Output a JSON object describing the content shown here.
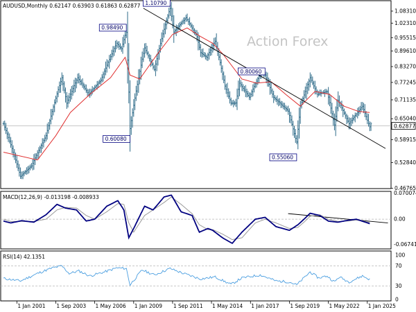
{
  "colors": {
    "price_bars": "#2e6b89",
    "moving_average": "#e03030",
    "trendline": "#000000",
    "macd_line": "#000080",
    "macd_signal": "#9a9a9a",
    "rsi_line": "#4a9ee0",
    "callout_border": "#000080",
    "reference_line": "#b5b5b5"
  },
  "watermark": "Action Forex",
  "chart_data": [
    {
      "type": "ohlc",
      "header": "AUDUSD,Monthly  0.62147 0.63903 0.61863 0.62877",
      "symbol": "AUDUSD",
      "timeframe": "Monthly",
      "last_bar": {
        "open": 0.62147,
        "high": 0.63903,
        "low": 0.61863,
        "close": 0.62877
      },
      "current_price_label": "0.62877",
      "y_scale": "log",
      "ylim": [
        0.4671,
        1.1378
      ],
      "y_ticks": [
        0.46765,
        0.5284,
        0.58915,
        0.6287,
        0.6504,
        0.71135,
        0.77245,
        0.8327,
        0.8961,
        0.95515,
        1.0231,
        1.0831
      ],
      "y_tick_labels": [
        "0.46765",
        "0.52840",
        "0.58915",
        "",
        "0.65040",
        "0.71135",
        "0.77245",
        "0.83270",
        "0.89610",
        "0.95515",
        "1.02310",
        "1.08310"
      ],
      "x_range": [
        "2000-02-01",
        "2026-04-01"
      ],
      "x_tick_dates": [
        "2001-01-01",
        "2003-09-01",
        "2006-05-01",
        "2009-01-01",
        "2011-09-01",
        "2014-05-01",
        "2017-01-01",
        "2019-09-01",
        "2022-05-01",
        "2025-01-01"
      ],
      "x_tick_labels": [
        "1 Jan 2001",
        "1 Sep 2003",
        "1 May 2006",
        "1 Jan 2009",
        "1 Sep 2011",
        "1 May 2014",
        "1 Jan 2017",
        "1 Sep 2019",
        "1 May 2022",
        "1 Jan 2025"
      ],
      "price_path": [
        [
          "2000-02-01",
          0.635
        ],
        [
          "2001-04-01",
          0.495
        ],
        [
          "2002-01-01",
          0.52
        ],
        [
          "2003-01-01",
          0.6
        ],
        [
          "2004-02-01",
          0.79
        ],
        [
          "2004-06-01",
          0.7
        ],
        [
          "2005-03-01",
          0.79
        ],
        [
          "2005-12-01",
          0.73
        ],
        [
          "2006-10-01",
          0.78
        ],
        [
          "2007-11-01",
          0.93
        ],
        [
          "2008-03-01",
          0.905
        ],
        [
          "2008-07-01",
          0.985
        ],
        [
          "2008-10-01",
          0.62
        ],
        [
          "2009-10-01",
          0.91
        ],
        [
          "2010-06-01",
          0.82
        ],
        [
          "2011-07-01",
          1.1
        ],
        [
          "2011-10-01",
          0.98
        ],
        [
          "2012-08-01",
          1.05
        ],
        [
          "2013-05-01",
          0.96
        ],
        [
          "2013-08-01",
          0.89
        ],
        [
          "2014-01-01",
          0.87
        ],
        [
          "2014-08-01",
          0.94
        ],
        [
          "2015-04-01",
          0.76
        ],
        [
          "2015-09-01",
          0.7
        ],
        [
          "2016-01-01",
          0.7
        ],
        [
          "2016-04-01",
          0.77
        ],
        [
          "2016-12-01",
          0.72
        ],
        [
          "2017-09-01",
          0.805
        ],
        [
          "2018-01-01",
          0.8
        ],
        [
          "2018-08-01",
          0.72
        ],
        [
          "2019-08-01",
          0.675
        ],
        [
          "2020-03-01",
          0.58
        ],
        [
          "2020-06-01",
          0.69
        ],
        [
          "2021-02-01",
          0.79
        ],
        [
          "2021-08-01",
          0.73
        ],
        [
          "2022-04-01",
          0.74
        ],
        [
          "2022-10-01",
          0.63
        ],
        [
          "2023-01-01",
          0.71
        ],
        [
          "2023-10-01",
          0.635
        ],
        [
          "2024-09-01",
          0.69
        ],
        [
          "2025-03-01",
          0.625
        ],
        [
          "2025-05-01",
          0.643
        ]
      ],
      "moving_average_path": [
        [
          "2000-02-01",
          0.555
        ],
        [
          "2002-06-01",
          0.535
        ],
        [
          "2003-09-01",
          0.6
        ],
        [
          "2004-09-01",
          0.67
        ],
        [
          "2006-01-01",
          0.73
        ],
        [
          "2007-06-01",
          0.79
        ],
        [
          "2008-06-01",
          0.87
        ],
        [
          "2008-10-01",
          0.8
        ],
        [
          "2009-06-01",
          0.785
        ],
        [
          "2010-08-01",
          0.88
        ],
        [
          "2011-09-01",
          0.97
        ],
        [
          "2012-09-01",
          1.0
        ],
        [
          "2013-08-01",
          0.96
        ],
        [
          "2014-06-01",
          0.93
        ],
        [
          "2015-03-01",
          0.88
        ],
        [
          "2016-06-01",
          0.785
        ],
        [
          "2017-06-01",
          0.77
        ],
        [
          "2018-06-01",
          0.775
        ],
        [
          "2019-06-01",
          0.73
        ],
        [
          "2020-06-01",
          0.69
        ],
        [
          "2021-06-01",
          0.74
        ],
        [
          "2022-06-01",
          0.73
        ],
        [
          "2023-06-01",
          0.69
        ],
        [
          "2024-06-01",
          0.673
        ],
        [
          "2025-03-01",
          0.67
        ]
      ],
      "trendline": {
        "from": [
          "2009-09-01",
          1.0979
        ],
        "to": [
          "2026-04-01",
          0.565
        ]
      },
      "callouts": [
        {
          "label": "1.10790",
          "value": 1.1079,
          "date": "2011-07-01"
        },
        {
          "label": "0.98490",
          "value": 0.9849,
          "date": "2008-07-01"
        },
        {
          "label": "0.60080",
          "value": 0.6008,
          "date": "2008-10-01"
        },
        {
          "label": "0.80060",
          "value": 0.8006,
          "date": "2018-01-01"
        },
        {
          "label": "0.55060",
          "value": 0.5506,
          "date": "2020-03-01"
        }
      ]
    },
    {
      "type": "line",
      "header": "MACD(12,26,9) -0.013198 -0.008933",
      "macd": -0.013198,
      "signal": -0.008933,
      "ylim": [
        -0.08,
        0.075
      ],
      "y_ticks": [
        0.070074,
        0.0,
        -0.067419
      ],
      "y_tick_labels": [
        "0.070074",
        "0.00",
        "-0.067419"
      ],
      "series": [
        {
          "values": [
            [
              "2000-02-01",
              -0.005
            ],
            [
              "2000-08-01",
              -0.01
            ],
            [
              "2001-05-01",
              -0.004
            ],
            [
              "2002-03-01",
              -0.008
            ],
            [
              "2003-01-01",
              0.012
            ],
            [
              "2003-10-01",
              0.04
            ],
            [
              "2004-05-01",
              0.03
            ],
            [
              "2005-02-01",
              0.025
            ],
            [
              "2005-10-01",
              -0.005
            ],
            [
              "2006-05-01",
              0.0
            ],
            [
              "2007-03-01",
              0.035
            ],
            [
              "2007-12-01",
              0.05
            ],
            [
              "2008-05-01",
              0.025
            ],
            [
              "2008-09-01",
              -0.05
            ],
            [
              "2009-01-01",
              -0.025
            ],
            [
              "2009-10-01",
              0.035
            ],
            [
              "2010-05-01",
              0.025
            ],
            [
              "2011-02-01",
              0.06
            ],
            [
              "2011-08-01",
              0.065
            ],
            [
              "2012-04-01",
              0.02
            ],
            [
              "2013-01-01",
              0.01
            ],
            [
              "2013-07-01",
              -0.035
            ],
            [
              "2014-02-01",
              -0.025
            ],
            [
              "2014-06-01",
              -0.03
            ],
            [
              "2015-02-01",
              -0.05
            ],
            [
              "2015-10-01",
              -0.065
            ],
            [
              "2016-06-01",
              -0.035
            ],
            [
              "2017-05-01",
              0.0
            ],
            [
              "2018-01-01",
              0.005
            ],
            [
              "2018-10-01",
              -0.02
            ],
            [
              "2019-09-01",
              -0.03
            ],
            [
              "2020-04-01",
              -0.015
            ],
            [
              "2020-09-01",
              0.0
            ],
            [
              "2021-02-01",
              0.016
            ],
            [
              "2021-10-01",
              0.01
            ],
            [
              "2022-05-01",
              -0.005
            ],
            [
              "2023-01-01",
              -0.008
            ],
            [
              "2023-09-01",
              -0.003
            ],
            [
              "2024-04-01",
              0.0
            ],
            [
              "2025-04-01",
              -0.013
            ]
          ]
        },
        {
          "values": [
            [
              "2000-02-01",
              0.0
            ],
            [
              "2000-08-01",
              -0.006
            ],
            [
              "2001-05-01",
              -0.006
            ],
            [
              "2002-03-01",
              -0.006
            ],
            [
              "2003-01-01",
              0.0
            ],
            [
              "2003-10-01",
              0.025
            ],
            [
              "2004-05-01",
              0.032
            ],
            [
              "2005-02-01",
              0.03
            ],
            [
              "2005-10-01",
              0.01
            ],
            [
              "2006-05-01",
              0.0
            ],
            [
              "2007-03-01",
              0.02
            ],
            [
              "2007-12-01",
              0.042
            ],
            [
              "2008-05-01",
              0.04
            ],
            [
              "2008-09-01",
              -0.01
            ],
            [
              "2009-01-01",
              -0.035
            ],
            [
              "2009-10-01",
              0.01
            ],
            [
              "2010-05-01",
              0.025
            ],
            [
              "2011-02-01",
              0.045
            ],
            [
              "2011-08-01",
              0.06
            ],
            [
              "2012-04-01",
              0.04
            ],
            [
              "2013-01-01",
              0.015
            ],
            [
              "2013-07-01",
              -0.015
            ],
            [
              "2014-02-01",
              -0.028
            ],
            [
              "2014-06-01",
              -0.028
            ],
            [
              "2015-02-01",
              -0.04
            ],
            [
              "2015-10-01",
              -0.055
            ],
            [
              "2016-06-01",
              -0.05
            ],
            [
              "2017-05-01",
              -0.01
            ],
            [
              "2018-01-01",
              0.0
            ],
            [
              "2018-10-01",
              -0.01
            ],
            [
              "2019-09-01",
              -0.025
            ],
            [
              "2020-04-01",
              -0.022
            ],
            [
              "2020-09-01",
              -0.008
            ],
            [
              "2021-02-01",
              0.008
            ],
            [
              "2021-10-01",
              0.012
            ],
            [
              "2022-05-01",
              0.0
            ],
            [
              "2023-01-01",
              -0.006
            ],
            [
              "2023-09-01",
              -0.005
            ],
            [
              "2024-04-01",
              -0.002
            ],
            [
              "2025-04-01",
              -0.009
            ]
          ]
        }
      ],
      "trendline": {
        "from": [
          "2019-08-01",
          0.015
        ],
        "to": [
          "2026-06-01",
          -0.01
        ]
      }
    },
    {
      "type": "line",
      "header": "RSI(14) 42.1351",
      "rsi": 42.1351,
      "ylim": [
        0,
        100
      ],
      "y_ticks": [
        100,
        70,
        30,
        0
      ],
      "y_tick_labels": [
        "100",
        "70",
        "30",
        "0"
      ],
      "series": [
        {
          "values": [
            [
              "2000-02-01",
              45
            ],
            [
              "2001-04-01",
              40
            ],
            [
              "2002-06-01",
              55
            ],
            [
              "2003-06-01",
              66
            ],
            [
              "2004-02-01",
              70
            ],
            [
              "2004-08-01",
              55
            ],
            [
              "2005-04-01",
              60
            ],
            [
              "2006-01-01",
              50
            ],
            [
              "2007-01-01",
              58
            ],
            [
              "2007-11-01",
              66
            ],
            [
              "2008-07-01",
              65
            ],
            [
              "2008-10-01",
              32
            ],
            [
              "2009-08-01",
              62
            ],
            [
              "2010-06-01",
              52
            ],
            [
              "2011-07-01",
              65
            ],
            [
              "2012-06-01",
              55
            ],
            [
              "2013-08-01",
              44
            ],
            [
              "2014-08-01",
              48
            ],
            [
              "2015-09-01",
              33
            ],
            [
              "2016-06-01",
              46
            ],
            [
              "2017-09-01",
              52
            ],
            [
              "2018-10-01",
              40
            ],
            [
              "2019-09-01",
              38
            ],
            [
              "2020-03-01",
              32
            ],
            [
              "2021-02-01",
              58
            ],
            [
              "2021-09-01",
              46
            ],
            [
              "2022-04-01",
              50
            ],
            [
              "2022-10-01",
              38
            ],
            [
              "2023-02-01",
              48
            ],
            [
              "2023-10-01",
              38
            ],
            [
              "2024-09-01",
              50
            ],
            [
              "2025-04-01",
              42
            ]
          ]
        }
      ]
    }
  ]
}
